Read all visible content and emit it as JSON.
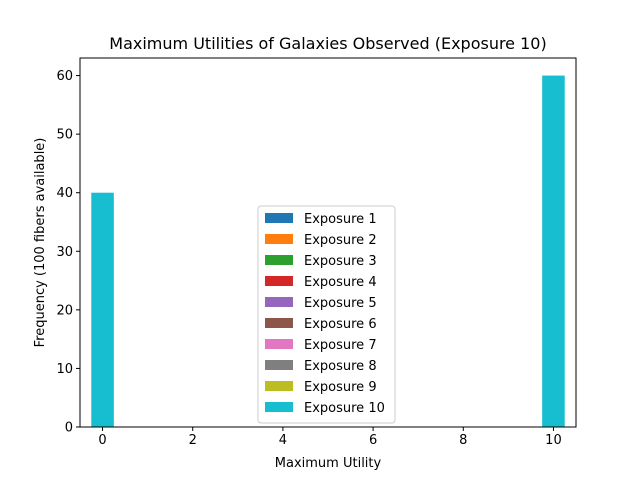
{
  "chart_data": {
    "type": "bar",
    "title": "Maximum Utilities of Galaxies Observed (Exposure 10)",
    "xlabel": "Maximum Utility",
    "ylabel": "Frequency (100 fibers available)",
    "xlim": [
      -0.5,
      10.5
    ],
    "ylim": [
      0,
      63
    ],
    "xticks": [
      0,
      2,
      4,
      6,
      8,
      10
    ],
    "yticks": [
      0,
      10,
      20,
      30,
      40,
      50,
      60
    ],
    "grid": false,
    "legend_position": "lower-center",
    "bar_width": 0.5,
    "series": [
      {
        "name": "Exposure 1",
        "color": "#1f77b4",
        "x": [],
        "values": []
      },
      {
        "name": "Exposure 2",
        "color": "#ff7f0e",
        "x": [],
        "values": []
      },
      {
        "name": "Exposure 3",
        "color": "#2ca02c",
        "x": [],
        "values": []
      },
      {
        "name": "Exposure 4",
        "color": "#d62728",
        "x": [],
        "values": []
      },
      {
        "name": "Exposure 5",
        "color": "#9467bd",
        "x": [],
        "values": []
      },
      {
        "name": "Exposure 6",
        "color": "#8c564b",
        "x": [],
        "values": []
      },
      {
        "name": "Exposure 7",
        "color": "#e377c2",
        "x": [],
        "values": []
      },
      {
        "name": "Exposure 8",
        "color": "#7f7f7f",
        "x": [],
        "values": []
      },
      {
        "name": "Exposure 9",
        "color": "#bcbd22",
        "x": [],
        "values": []
      },
      {
        "name": "Exposure 10",
        "color": "#17becf",
        "x": [
          0,
          10
        ],
        "values": [
          40,
          60
        ]
      }
    ]
  }
}
